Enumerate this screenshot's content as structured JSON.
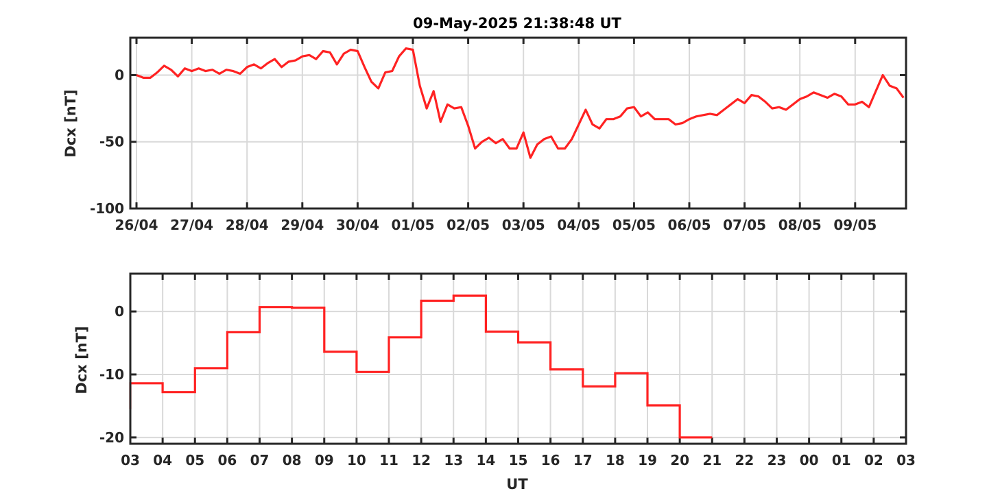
{
  "title": "09-May-2025 21:38:48 UT",
  "colors": {
    "series": "#ff2222",
    "axis": "#262626",
    "grid": "#d9d9d9"
  },
  "chart_data": [
    {
      "type": "line",
      "ylabel": "Dcx [nT]",
      "xlabel": "",
      "ylim": [
        -100,
        28
      ],
      "xlim": [
        "2025-04-26 00:00",
        "2025-05-09 21:00"
      ],
      "grid": true,
      "x_tick_labels": [
        "26/04",
        "27/04",
        "28/04",
        "29/04",
        "30/04",
        "01/05",
        "02/05",
        "03/05",
        "04/05",
        "05/05",
        "06/05",
        "07/05",
        "08/05",
        "09/05"
      ],
      "y_tick_labels": [
        "0",
        "-50",
        "-100"
      ],
      "series": [
        {
          "x": [
            "2025-04-26 00:00",
            "2025-04-26 03:00",
            "2025-04-26 06:00",
            "2025-04-26 09:00",
            "2025-04-26 12:00",
            "2025-04-26 15:00",
            "2025-04-26 18:00",
            "2025-04-26 21:00",
            "2025-04-27 00:00",
            "2025-04-27 03:00",
            "2025-04-27 06:00",
            "2025-04-27 09:00",
            "2025-04-27 12:00",
            "2025-04-27 15:00",
            "2025-04-27 18:00",
            "2025-04-27 21:00",
            "2025-04-28 00:00",
            "2025-04-28 03:00",
            "2025-04-28 06:00",
            "2025-04-28 09:00",
            "2025-04-28 12:00",
            "2025-04-28 15:00",
            "2025-04-28 18:00",
            "2025-04-28 21:00",
            "2025-04-29 00:00",
            "2025-04-29 03:00",
            "2025-04-29 06:00",
            "2025-04-29 09:00",
            "2025-04-29 12:00",
            "2025-04-29 15:00",
            "2025-04-29 18:00",
            "2025-04-29 21:00",
            "2025-04-30 00:00",
            "2025-04-30 03:00",
            "2025-04-30 06:00",
            "2025-04-30 09:00",
            "2025-04-30 12:00",
            "2025-04-30 15:00",
            "2025-04-30 18:00",
            "2025-04-30 21:00",
            "2025-05-01 00:00",
            "2025-05-01 03:00",
            "2025-05-01 06:00",
            "2025-05-01 09:00",
            "2025-05-01 12:00",
            "2025-05-01 15:00",
            "2025-05-01 18:00",
            "2025-05-01 21:00",
            "2025-05-02 00:00",
            "2025-05-02 03:00",
            "2025-05-02 06:00",
            "2025-05-02 09:00",
            "2025-05-02 12:00",
            "2025-05-02 15:00",
            "2025-05-02 18:00",
            "2025-05-02 21:00",
            "2025-05-03 00:00",
            "2025-05-03 03:00",
            "2025-05-03 06:00",
            "2025-05-03 09:00",
            "2025-05-03 12:00",
            "2025-05-03 15:00",
            "2025-05-03 18:00",
            "2025-05-03 21:00",
            "2025-05-04 00:00",
            "2025-05-04 03:00",
            "2025-05-04 06:00",
            "2025-05-04 09:00",
            "2025-05-04 12:00",
            "2025-05-04 15:00",
            "2025-05-04 18:00",
            "2025-05-04 21:00",
            "2025-05-05 00:00",
            "2025-05-05 03:00",
            "2025-05-05 06:00",
            "2025-05-05 09:00",
            "2025-05-05 12:00",
            "2025-05-05 15:00",
            "2025-05-05 18:00",
            "2025-05-05 21:00",
            "2025-05-06 00:00",
            "2025-05-06 03:00",
            "2025-05-06 06:00",
            "2025-05-06 09:00",
            "2025-05-06 12:00",
            "2025-05-06 15:00",
            "2025-05-06 18:00",
            "2025-05-06 21:00",
            "2025-05-07 00:00",
            "2025-05-07 03:00",
            "2025-05-07 06:00",
            "2025-05-07 09:00",
            "2025-05-07 12:00",
            "2025-05-07 15:00",
            "2025-05-07 18:00",
            "2025-05-07 21:00",
            "2025-05-08 00:00",
            "2025-05-08 03:00",
            "2025-05-08 06:00",
            "2025-05-08 09:00",
            "2025-05-08 12:00",
            "2025-05-08 15:00",
            "2025-05-08 18:00",
            "2025-05-08 21:00",
            "2025-05-09 00:00",
            "2025-05-09 03:00",
            "2025-05-09 06:00",
            "2025-05-09 09:00",
            "2025-05-09 12:00",
            "2025-05-09 15:00",
            "2025-05-09 18:00",
            "2025-05-09 21:00"
          ],
          "values": [
            0,
            -2,
            -2,
            2,
            7,
            4,
            -1,
            5,
            3,
            5,
            3,
            4,
            1,
            4,
            3,
            1,
            6,
            8,
            5,
            9,
            12,
            6,
            10,
            11,
            14,
            15,
            12,
            18,
            17,
            8,
            16,
            19,
            18,
            6,
            -5,
            -10,
            2,
            3,
            14,
            20,
            19,
            -8,
            -25,
            -12,
            -35,
            -22,
            -25,
            -24,
            -38,
            -55,
            -50,
            -47,
            -51,
            -48,
            -55,
            -55,
            -43,
            -62,
            -52,
            -48,
            -46,
            -55,
            -55,
            -48,
            -37,
            -26,
            -37,
            -40,
            -33,
            -33,
            -31,
            -25,
            -24,
            -31,
            -28,
            -33,
            -33,
            -33,
            -37,
            -36,
            -33,
            -31,
            -30,
            -29,
            -30,
            -26,
            -22,
            -18,
            -21,
            -15,
            -16,
            -20,
            -25,
            -24,
            -26,
            -22,
            -18,
            -16,
            -13,
            -15,
            -17,
            -14,
            -16,
            -22,
            -22,
            -20,
            -24,
            -12,
            0,
            -8,
            -10,
            -17
          ]
        }
      ]
    },
    {
      "type": "line",
      "ylabel": "Dcx [nT]",
      "xlabel": "UT",
      "ylim": [
        -21,
        6
      ],
      "grid": true,
      "step": true,
      "x_tick_labels": [
        "03",
        "04",
        "05",
        "06",
        "07",
        "08",
        "09",
        "10",
        "11",
        "12",
        "13",
        "14",
        "15",
        "16",
        "17",
        "18",
        "19",
        "20",
        "21",
        "22",
        "23",
        "00",
        "01",
        "02",
        "03"
      ],
      "y_tick_labels": [
        "0",
        "-10",
        "-20"
      ],
      "series": [
        {
          "x": [
            "03",
            "04",
            "05",
            "06",
            "07",
            "08",
            "09",
            "10",
            "11",
            "12",
            "13",
            "14",
            "15",
            "16",
            "17",
            "18",
            "19",
            "20"
          ],
          "values": [
            -11.4,
            -12.8,
            -9.0,
            -3.3,
            0.7,
            0.6,
            -6.4,
            -9.6,
            -4.1,
            1.7,
            2.5,
            -3.2,
            -4.9,
            -9.2,
            -11.9,
            -9.8,
            -14.9,
            -20.0
          ]
        }
      ]
    }
  ]
}
